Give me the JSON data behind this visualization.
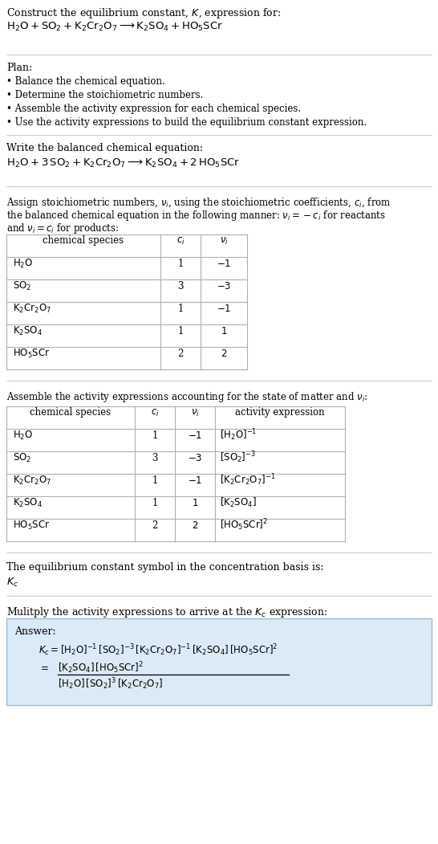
{
  "title_line1": "Construct the equilibrium constant, $K$, expression for:",
  "reaction_unbalanced": "$\\mathrm{H_2O + SO_2 + K_2Cr_2O_7 \\longrightarrow K_2SO_4 + HO_5SCr}$",
  "plan_header": "Plan:",
  "plan_items": [
    "• Balance the chemical equation.",
    "• Determine the stoichiometric numbers.",
    "• Assemble the activity expression for each chemical species.",
    "• Use the activity expressions to build the equilibrium constant expression."
  ],
  "balanced_header": "Write the balanced chemical equation:",
  "reaction_balanced": "$\\mathrm{H_2O + 3\\,SO_2 + K_2Cr_2O_7 \\longrightarrow K_2SO_4 + 2\\,HO_5SCr}$",
  "stoich_header_parts": [
    "Assign stoichiometric numbers, $\\nu_i$, using the stoichiometric coefficients, $c_i$, from",
    "the balanced chemical equation in the following manner: $\\nu_i = -c_i$ for reactants",
    "and $\\nu_i = c_i$ for products:"
  ],
  "table1_headers": [
    "chemical species",
    "$c_i$",
    "$\\nu_i$"
  ],
  "table1_rows": [
    [
      "$\\mathrm{H_2O}$",
      "1",
      "$-1$"
    ],
    [
      "$\\mathrm{SO_2}$",
      "3",
      "$-3$"
    ],
    [
      "$\\mathrm{K_2Cr_2O_7}$",
      "1",
      "$-1$"
    ],
    [
      "$\\mathrm{K_2SO_4}$",
      "1",
      "$1$"
    ],
    [
      "$\\mathrm{HO_5SCr}$",
      "2",
      "$2$"
    ]
  ],
  "activity_header": "Assemble the activity expressions accounting for the state of matter and $\\nu_i$:",
  "table2_headers": [
    "chemical species",
    "$c_i$",
    "$\\nu_i$",
    "activity expression"
  ],
  "table2_rows": [
    [
      "$\\mathrm{H_2O}$",
      "1",
      "$-1$",
      "$[\\mathrm{H_2O}]^{-1}$"
    ],
    [
      "$\\mathrm{SO_2}$",
      "3",
      "$-3$",
      "$[\\mathrm{SO_2}]^{-3}$"
    ],
    [
      "$\\mathrm{K_2Cr_2O_7}$",
      "1",
      "$-1$",
      "$[\\mathrm{K_2Cr_2O_7}]^{-1}$"
    ],
    [
      "$\\mathrm{K_2SO_4}$",
      "1",
      "$1$",
      "$[\\mathrm{K_2SO_4}]$"
    ],
    [
      "$\\mathrm{HO_5SCr}$",
      "2",
      "$2$",
      "$[\\mathrm{HO_5SCr}]^2$"
    ]
  ],
  "kc_header": "The equilibrium constant symbol in the concentration basis is:",
  "kc_symbol": "$K_c$",
  "multiply_header": "Mulitply the activity expressions to arrive at the $K_c$ expression:",
  "answer_label": "Answer:",
  "answer_line1": "$K_c = [\\mathrm{H_2O}]^{-1}\\,[\\mathrm{SO_2}]^{-3}\\,[\\mathrm{K_2Cr_2O_7}]^{-1}\\,[\\mathrm{K_2SO_4}]\\,[\\mathrm{HO_5SCr}]^2$",
  "answer_eq": "$=$",
  "answer_num": "$[\\mathrm{K_2SO_4}]\\,[\\mathrm{HO_5SCr}]^2$",
  "answer_den": "$[\\mathrm{H_2O}]\\,[\\mathrm{SO_2}]^3\\,[\\mathrm{K_2Cr_2O_7}]$",
  "bg_color": "#ffffff",
  "table_border_color": "#b0b0b0",
  "answer_box_bg": "#daeaf7",
  "answer_box_border": "#a0b8cc",
  "text_color": "#000000",
  "sep_color": "#cccccc",
  "font_size": 9.5,
  "small_font_size": 9.0
}
